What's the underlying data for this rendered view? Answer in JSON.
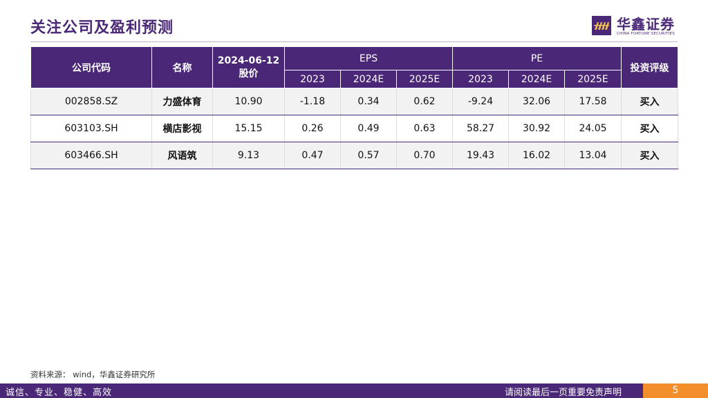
{
  "page": {
    "title": "关注公司及盈利预测",
    "logo_cn": "华鑫证券",
    "logo_en": "CHINA FORTUNE SECURITIES",
    "source": "资料来源： wind，华鑫证券研究所",
    "footer_left": "诚信、专业、稳健、高效",
    "footer_right": "请阅读最后一页重要免责声明",
    "page_number": "5",
    "accent_color": "#4a2777",
    "page_badge_color": "#f28e2b"
  },
  "table": {
    "headers": {
      "code": "公司代码",
      "name": "名称",
      "price_date": "2024-06-12",
      "price": "股价",
      "eps": "EPS",
      "pe": "PE",
      "rating": "投资评级",
      "years": [
        "2023",
        "2024E",
        "2025E"
      ]
    },
    "rows": [
      {
        "code": "002858.SZ",
        "name": "力盛体育",
        "price": "10.90",
        "eps": [
          "-1.18",
          "0.34",
          "0.62"
        ],
        "pe": [
          "-9.24",
          "32.06",
          "17.58"
        ],
        "rating": "买入"
      },
      {
        "code": "603103.SH",
        "name": "横店影视",
        "price": "15.15",
        "eps": [
          "0.26",
          "0.49",
          "0.63"
        ],
        "pe": [
          "58.27",
          "30.92",
          "24.05"
        ],
        "rating": "买入"
      },
      {
        "code": "603466.SH",
        "name": "风语筑",
        "price": "9.13",
        "eps": [
          "0.47",
          "0.57",
          "0.70"
        ],
        "pe": [
          "19.43",
          "16.02",
          "13.04"
        ],
        "rating": "买入"
      }
    ]
  }
}
